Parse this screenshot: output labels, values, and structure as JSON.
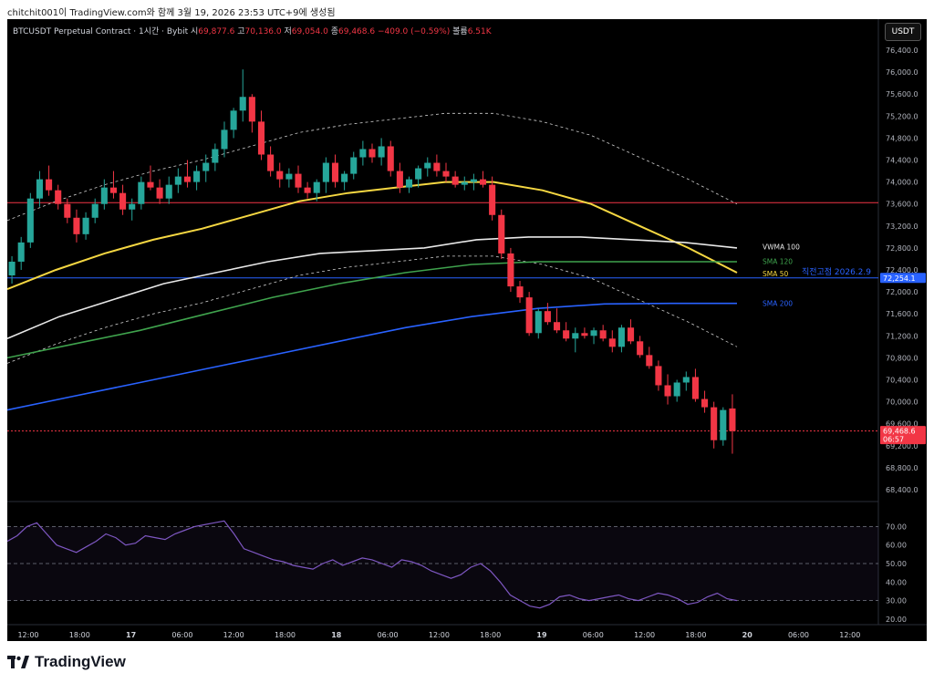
{
  "topline": "chitchit001이 TradingView.com와 함께 3월 19, 2026 23:53 UTC+9에 생성됨",
  "header": {
    "symbol": "BTCUSDT Perpetual Contract · 1시간 · Bybit",
    "open_label": "시",
    "open": "69,877.6",
    "high_label": "고",
    "high": "70,136.0",
    "low_label": "저",
    "low": "69,054.0",
    "close_label": "종",
    "close": "69,468.6",
    "change": "−409.0 (−0.59%)",
    "volume_label": "볼륨",
    "volume": "6.51K"
  },
  "currency_button": "USDT",
  "footer": {
    "brand": "TradingView"
  },
  "colors": {
    "up": "#26a69a",
    "down": "#f23645",
    "sma50": "#f5d742",
    "sma120": "#3fa34d",
    "sma200": "#2962ff",
    "vwma100": "#e8e8e8",
    "prev_close_line": "#2962ff",
    "resistance_line": "#f23645",
    "rsi": "#7e57c2"
  },
  "chart_data": [
    {
      "type": "candlestick",
      "title": "BTCUSDT Perpetual Contract · 1시간 · Bybit",
      "x_ticks": [
        "12:00",
        "18:00",
        "17",
        "06:00",
        "12:00",
        "18:00",
        "18",
        "06:00",
        "12:00",
        "18:00",
        "19",
        "06:00",
        "12:00",
        "18:00",
        "20",
        "06:00",
        "12:00"
      ],
      "y_ticks": [
        "76,400.0",
        "76,000.0",
        "75,600.0",
        "75,200.0",
        "74,800.0",
        "74,400.0",
        "74,000.0",
        "73,600.0",
        "73,200.0",
        "72,800.0",
        "72,400.0",
        "72,000.0",
        "71,600.0",
        "71,200.0",
        "70,800.0",
        "70,400.0",
        "70,000.0",
        "69,600.0",
        "69,200.0",
        "68,800.0",
        "68,400.0"
      ],
      "ylim": [
        68200,
        76600
      ],
      "grid": false,
      "horizontal_lines": [
        {
          "price": 73625,
          "color": "#f23645"
        },
        {
          "price": 72254.1,
          "color": "#2962ff",
          "label": "직전고점 2026.2.9",
          "tag": "72,254.1"
        },
        {
          "price": 69468.6,
          "color": "#f23645",
          "tag": "69,468.6",
          "countdown": "06:57"
        }
      ],
      "indicator_labels": [
        {
          "name": "VWMA 100",
          "value": 72820
        },
        {
          "name": "SMA 120",
          "value": 72560
        },
        {
          "name": "SMA 50",
          "value": 72330
        },
        {
          "name": "SMA 200",
          "value": 71790
        }
      ],
      "series": [
        {
          "name": "SMA 50",
          "values": [
            72050,
            72400,
            72700,
            72950,
            73150,
            73400,
            73650,
            73800,
            73900,
            74000,
            74000,
            73850,
            73600,
            73200,
            72800,
            72350
          ]
        },
        {
          "name": "VWMA 100",
          "values": [
            71150,
            71550,
            71850,
            72150,
            72350,
            72550,
            72700,
            72750,
            72800,
            72950,
            73000,
            73000,
            72950,
            72900,
            72800
          ]
        },
        {
          "name": "SMA 120",
          "values": [
            70800,
            71050,
            71300,
            71600,
            71900,
            72150,
            72350,
            72500,
            72550,
            72550,
            72550,
            72550
          ]
        },
        {
          "name": "SMA 200",
          "values": [
            69850,
            70100,
            70350,
            70600,
            70850,
            71100,
            71350,
            71550,
            71700,
            71780,
            71790,
            71790
          ]
        }
      ],
      "candles": [
        [
          72300,
          72650,
          72150,
          72550
        ],
        [
          72550,
          73000,
          72400,
          72900
        ],
        [
          72900,
          73800,
          72800,
          73700
        ],
        [
          73700,
          74200,
          73550,
          74050
        ],
        [
          74050,
          74300,
          73750,
          73850
        ],
        [
          73850,
          73950,
          73500,
          73600
        ],
        [
          73600,
          73700,
          73250,
          73350
        ],
        [
          73350,
          73500,
          72900,
          73050
        ],
        [
          73050,
          73450,
          72950,
          73350
        ],
        [
          73350,
          73700,
          73250,
          73600
        ],
        [
          73600,
          74050,
          73500,
          73900
        ],
        [
          73900,
          74200,
          73700,
          73800
        ],
        [
          73800,
          73950,
          73400,
          73500
        ],
        [
          73500,
          73700,
          73300,
          73600
        ],
        [
          73600,
          74100,
          73500,
          74000
        ],
        [
          74000,
          74300,
          73850,
          73900
        ],
        [
          73900,
          74050,
          73600,
          73700
        ],
        [
          73700,
          74100,
          73600,
          73950
        ],
        [
          73950,
          74250,
          73800,
          74100
        ],
        [
          74100,
          74400,
          73900,
          74000
        ],
        [
          74000,
          74300,
          73850,
          74200
        ],
        [
          74200,
          74500,
          74000,
          74350
        ],
        [
          74350,
          74700,
          74200,
          74600
        ],
        [
          74600,
          75100,
          74450,
          74950
        ],
        [
          74950,
          75350,
          74800,
          75300
        ],
        [
          75300,
          76050,
          75100,
          75550
        ],
        [
          75550,
          75600,
          74900,
          75100
        ],
        [
          75100,
          75300,
          74400,
          74500
        ],
        [
          74500,
          74650,
          74100,
          74200
        ],
        [
          74200,
          74350,
          73900,
          74050
        ],
        [
          74050,
          74250,
          73900,
          74150
        ],
        [
          74150,
          74300,
          73800,
          73900
        ],
        [
          73900,
          74000,
          73700,
          73800
        ],
        [
          73800,
          74050,
          73650,
          74000
        ],
        [
          74000,
          74450,
          73800,
          74350
        ],
        [
          74350,
          74500,
          73900,
          74000
        ],
        [
          74000,
          74200,
          73850,
          74150
        ],
        [
          74150,
          74550,
          74050,
          74450
        ],
        [
          74450,
          74750,
          74300,
          74600
        ],
        [
          74600,
          74700,
          74350,
          74450
        ],
        [
          74450,
          74800,
          74300,
          74650
        ],
        [
          74650,
          74750,
          74100,
          74200
        ],
        [
          74200,
          74350,
          73800,
          73900
        ],
        [
          73900,
          74100,
          73800,
          74050
        ],
        [
          74050,
          74300,
          73900,
          74250
        ],
        [
          74250,
          74450,
          74100,
          74350
        ],
        [
          74350,
          74500,
          74100,
          74200
        ],
        [
          74200,
          74350,
          74000,
          74100
        ],
        [
          74100,
          74200,
          73900,
          73950
        ],
        [
          73950,
          74100,
          73850,
          74000
        ],
        [
          74000,
          74150,
          73850,
          74050
        ],
        [
          74050,
          74200,
          73900,
          73950
        ],
        [
          73950,
          74100,
          73300,
          73400
        ],
        [
          73400,
          73500,
          72600,
          72700
        ],
        [
          72700,
          72800,
          72000,
          72100
        ],
        [
          72100,
          72200,
          71800,
          71900
        ],
        [
          71900,
          72000,
          71200,
          71250
        ],
        [
          71250,
          71700,
          71150,
          71650
        ],
        [
          71650,
          71800,
          71400,
          71450
        ],
        [
          71450,
          71700,
          71250,
          71300
        ],
        [
          71300,
          71450,
          71100,
          71150
        ],
        [
          71150,
          71350,
          70900,
          71250
        ],
        [
          71250,
          71350,
          71150,
          71200
        ],
        [
          71200,
          71350,
          71050,
          71300
        ],
        [
          71300,
          71400,
          71100,
          71150
        ],
        [
          71150,
          71300,
          70900,
          71000
        ],
        [
          71000,
          71400,
          70900,
          71350
        ],
        [
          71350,
          71500,
          71050,
          71100
        ],
        [
          71100,
          71200,
          70800,
          70850
        ],
        [
          70850,
          71000,
          70600,
          70650
        ],
        [
          70650,
          70750,
          70200,
          70300
        ],
        [
          70300,
          70500,
          69950,
          70100
        ],
        [
          70100,
          70400,
          70000,
          70350
        ],
        [
          70350,
          70550,
          70200,
          70450
        ],
        [
          70450,
          70600,
          70000,
          70050
        ],
        [
          70050,
          70200,
          69800,
          69900
        ],
        [
          69900,
          70000,
          69150,
          69300
        ],
        [
          69300,
          69900,
          69200,
          69850
        ],
        [
          69877.6,
          70136.0,
          69054.0,
          69468.6
        ]
      ]
    },
    {
      "type": "line",
      "title": "RSI",
      "y_ticks": [
        "70.00",
        "60.00",
        "50.00",
        "40.00",
        "30.00",
        "20.00"
      ],
      "ylim": [
        17,
        83
      ],
      "bands": [
        70,
        50,
        30
      ],
      "series": [
        {
          "name": "RSI",
          "values": [
            62,
            65,
            70,
            72,
            66,
            60,
            58,
            56,
            59,
            62,
            66,
            64,
            60,
            61,
            65,
            64,
            63,
            66,
            68,
            70,
            71,
            72,
            73,
            66,
            58,
            56,
            54,
            52,
            51,
            49,
            48,
            47,
            50,
            52,
            49,
            51,
            53,
            52,
            50,
            48,
            52,
            51,
            49,
            46,
            44,
            42,
            44,
            48,
            50,
            46,
            40,
            33,
            30,
            27,
            26,
            28,
            32,
            33,
            31,
            30,
            31,
            32,
            33,
            31,
            30,
            32,
            34,
            33,
            31,
            28,
            29,
            32,
            34,
            31,
            30
          ]
        }
      ]
    }
  ]
}
